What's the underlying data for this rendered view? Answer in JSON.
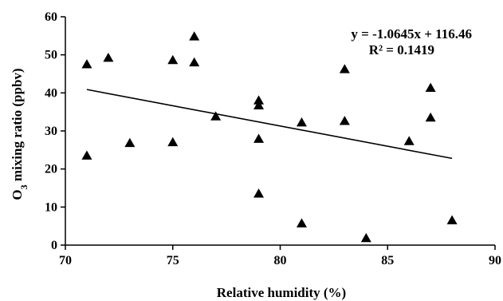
{
  "chart_data": {
    "type": "scatter",
    "xlabel": "Relative humidity (%)",
    "ylabel_main": "O",
    "ylabel_sub": "3",
    "ylabel_rest": " mixing ratio (ppbv)",
    "xlim": [
      70,
      90
    ],
    "ylim": [
      0,
      60
    ],
    "xticks": [
      70,
      75,
      80,
      85,
      90
    ],
    "yticks": [
      0,
      10,
      20,
      30,
      40,
      50,
      60
    ],
    "xtick_labels": [
      "70",
      "75",
      "80",
      "85",
      "90"
    ],
    "ytick_labels": [
      "0",
      "10",
      "20",
      "30",
      "40",
      "50",
      "60"
    ],
    "grid": false,
    "marker": "triangle",
    "marker_color": "#000000",
    "points": [
      {
        "x": 71,
        "y": 47.5
      },
      {
        "x": 71,
        "y": 23.5
      },
      {
        "x": 72,
        "y": 49.2
      },
      {
        "x": 73,
        "y": 26.8
      },
      {
        "x": 75,
        "y": 48.6
      },
      {
        "x": 75,
        "y": 27.0
      },
      {
        "x": 76,
        "y": 54.8
      },
      {
        "x": 76,
        "y": 48.0
      },
      {
        "x": 77,
        "y": 33.8
      },
      {
        "x": 79,
        "y": 38.0
      },
      {
        "x": 79,
        "y": 36.7
      },
      {
        "x": 79,
        "y": 27.9
      },
      {
        "x": 79,
        "y": 13.5
      },
      {
        "x": 81,
        "y": 32.2
      },
      {
        "x": 81,
        "y": 5.7
      },
      {
        "x": 83,
        "y": 46.2
      },
      {
        "x": 83,
        "y": 32.6
      },
      {
        "x": 84,
        "y": 1.8
      },
      {
        "x": 86,
        "y": 27.3
      },
      {
        "x": 87,
        "y": 41.3
      },
      {
        "x": 87,
        "y": 33.5
      },
      {
        "x": 88,
        "y": 6.5
      }
    ],
    "trendline": {
      "x_range": [
        71,
        88
      ],
      "slope": -1.0645,
      "intercept": 116.46,
      "equation_text": "y = -1.0645x + 116.46",
      "r2_text": "R² = 0.1419"
    }
  }
}
